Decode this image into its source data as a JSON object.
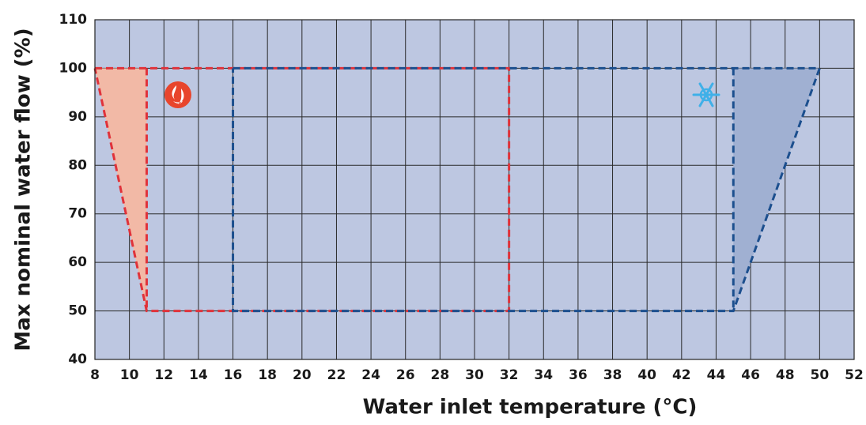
{
  "chart_data": {
    "type": "polygon",
    "xlabel": "Water inlet temperature (°C)",
    "ylabel": "Max nominal water flow (%)",
    "xlim": [
      8,
      52
    ],
    "ylim": [
      40,
      110
    ],
    "xticks": [
      8,
      10,
      12,
      14,
      16,
      18,
      20,
      22,
      24,
      26,
      28,
      30,
      32,
      34,
      36,
      38,
      40,
      42,
      44,
      46,
      48,
      50,
      52
    ],
    "yticks": [
      40,
      50,
      60,
      70,
      80,
      90,
      100,
      110
    ],
    "grid": true,
    "background": "#bdc7e1",
    "series": [
      {
        "color": "#f2b9a6",
        "fill": true,
        "dashed": false,
        "x": [
          8,
          11,
          11
        ],
        "values": [
          100,
          100,
          50
        ]
      },
      {
        "color": "#a0b0d2",
        "fill": true,
        "dashed": false,
        "x": [
          45,
          50,
          45
        ],
        "values": [
          100,
          100,
          50
        ]
      },
      {
        "color": "#e0323a",
        "fill": false,
        "dashed": true,
        "x": [
          8,
          32,
          32,
          11,
          8
        ],
        "values": [
          100,
          100,
          50,
          50,
          100
        ]
      },
      {
        "color": "#e0323a",
        "fill": false,
        "dashed": true,
        "x": [
          11,
          11
        ],
        "values": [
          100,
          50
        ]
      },
      {
        "color": "#1c4f8e",
        "fill": false,
        "dashed": true,
        "x": [
          16,
          50,
          45,
          16,
          16
        ],
        "values": [
          100,
          100,
          50,
          50,
          100
        ]
      },
      {
        "color": "#1c4f8e",
        "fill": false,
        "dashed": true,
        "x": [
          45,
          45
        ],
        "values": [
          100,
          50
        ]
      }
    ]
  }
}
